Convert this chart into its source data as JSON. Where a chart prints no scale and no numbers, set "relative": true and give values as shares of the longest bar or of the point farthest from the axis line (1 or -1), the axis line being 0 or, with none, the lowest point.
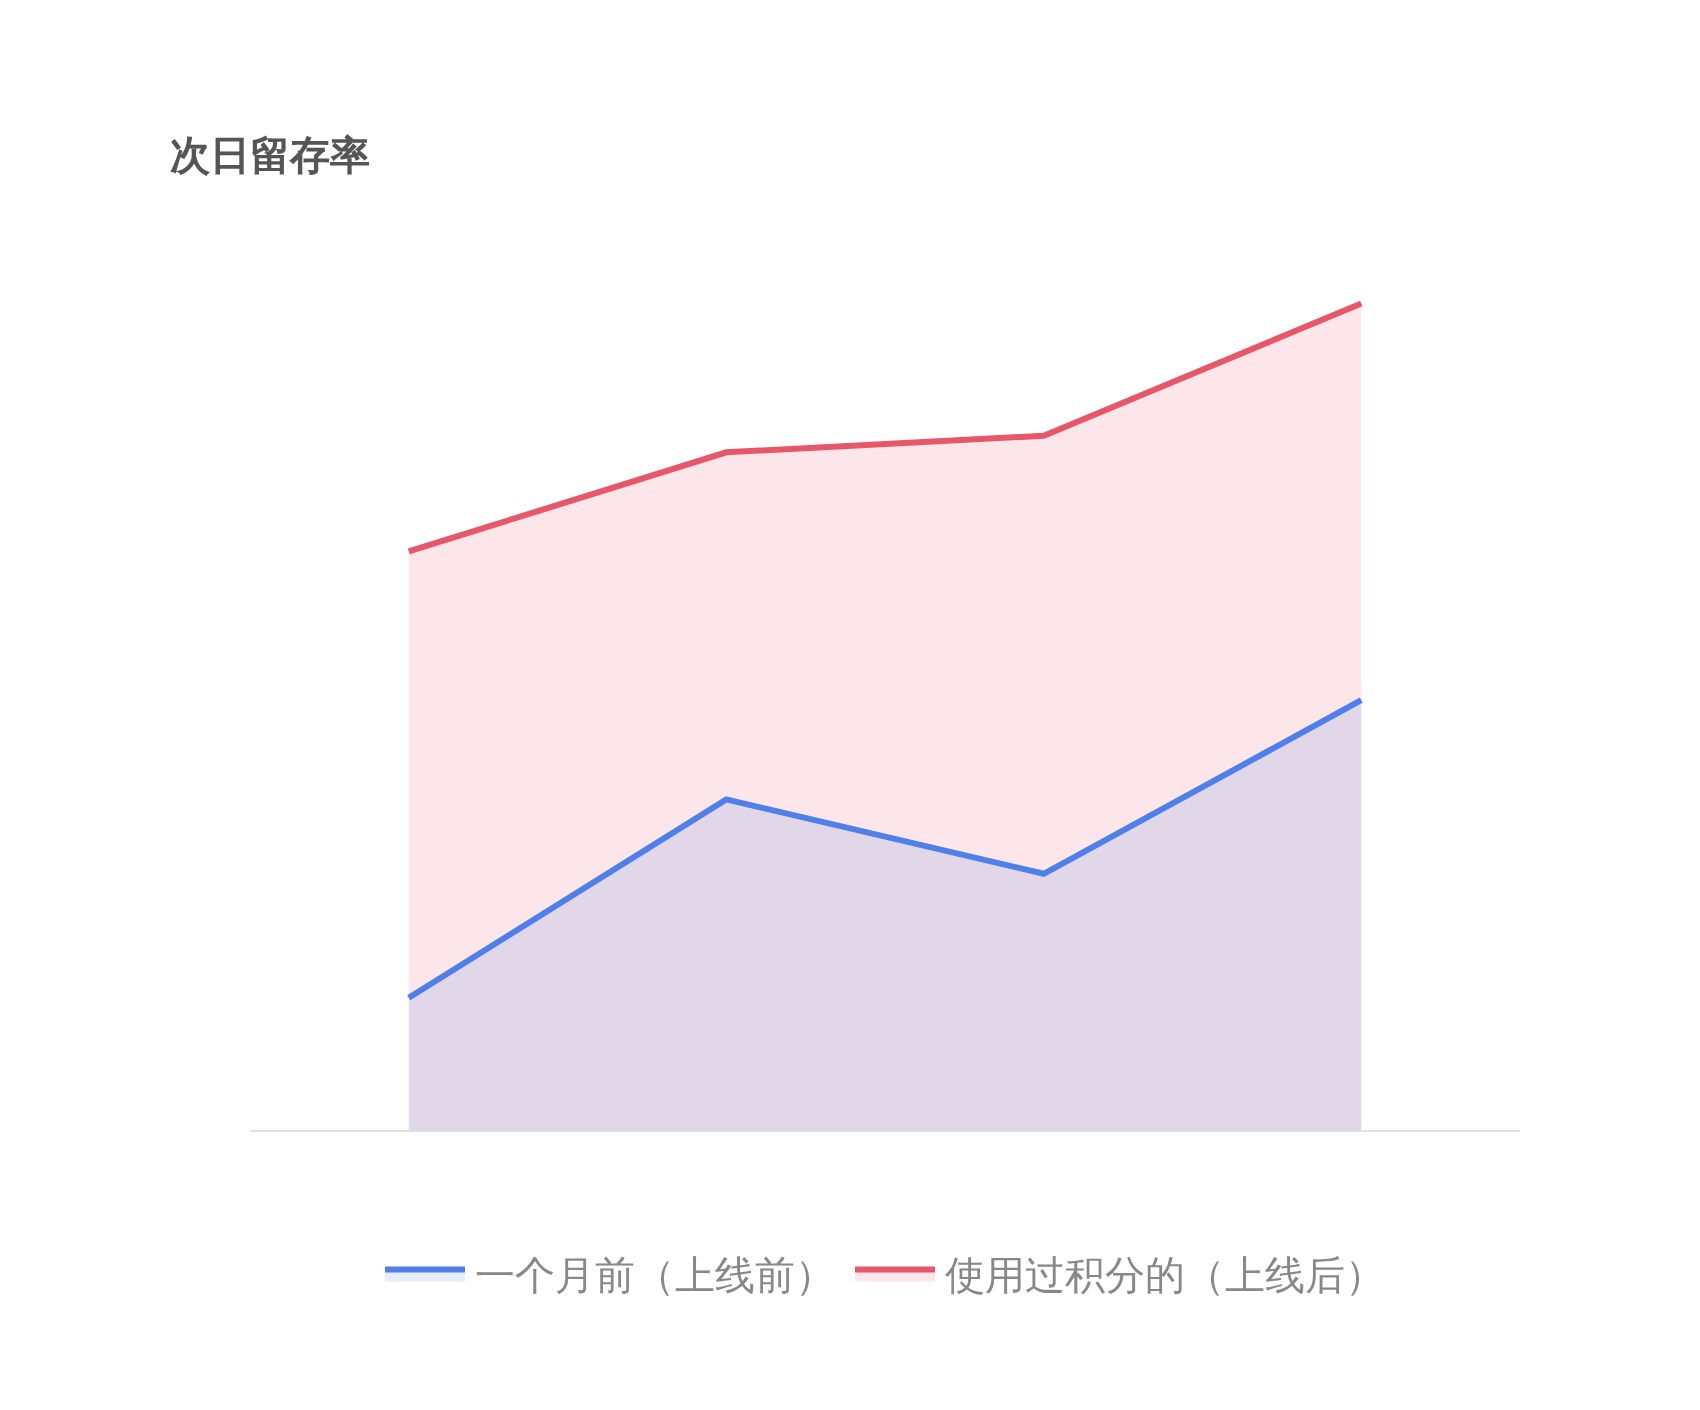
{
  "chart_data": {
    "type": "area",
    "title": "次日留存率",
    "relative": true,
    "categories": [
      null,
      null,
      null,
      null
    ],
    "series": [
      {
        "name": "一个月前（上线前）",
        "color": "#4f7fe8",
        "values": [
          0.16,
          0.4,
          0.31,
          0.52
        ]
      },
      {
        "name": "使用过积分的（上线后）",
        "color": "#e8566a",
        "values": [
          0.7,
          0.82,
          0.84,
          1
        ]
      }
    ],
    "legend": "bottom",
    "line_style": "solid",
    "marker": "none"
  }
}
